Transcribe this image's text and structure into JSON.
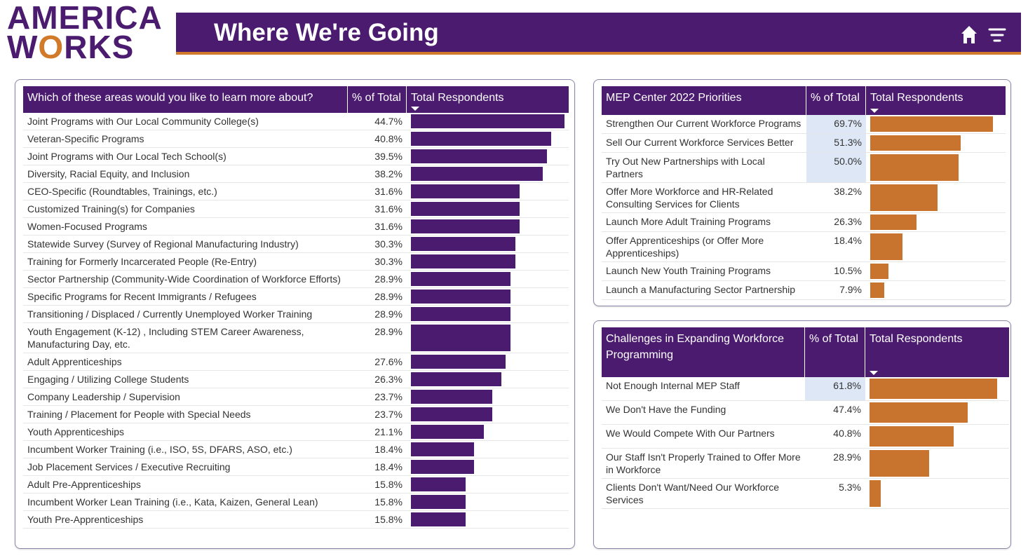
{
  "header": {
    "logo": [
      "AMERICA",
      "WORKS"
    ],
    "title": "Where We're Going"
  },
  "tables": [
    {
      "columns": [
        "Which of these areas would you like to learn more about?",
        "% of Total",
        "Total Respondents"
      ],
      "bar_color": "#4b1b6f",
      "rows": [
        {
          "label": "Joint Programs with Our Local Community College(s)",
          "value": 44.7,
          "value_label": "44.7%"
        },
        {
          "label": "Veteran-Specific Programs",
          "value": 40.8,
          "value_label": "40.8%"
        },
        {
          "label": "Joint Programs with Our Local Tech School(s)",
          "value": 39.5,
          "value_label": "39.5%"
        },
        {
          "label": "Diversity, Racial Equity, and Inclusion",
          "value": 38.2,
          "value_label": "38.2%"
        },
        {
          "label": "CEO-Specific (Roundtables, Trainings, etc.)",
          "value": 31.6,
          "value_label": "31.6%"
        },
        {
          "label": "Customized Training(s) for Companies",
          "value": 31.6,
          "value_label": "31.6%"
        },
        {
          "label": "Women-Focused Programs",
          "value": 31.6,
          "value_label": "31.6%"
        },
        {
          "label": "Statewide Survey (Survey of Regional Manufacturing Industry)",
          "value": 30.3,
          "value_label": "30.3%"
        },
        {
          "label": "Training for Formerly Incarcerated People (Re-Entry)",
          "value": 30.3,
          "value_label": "30.3%"
        },
        {
          "label": "Sector Partnership (Community-Wide Coordination of Workforce Efforts)",
          "value": 28.9,
          "value_label": "28.9%"
        },
        {
          "label": "Specific Programs for Recent Immigrants / Refugees",
          "value": 28.9,
          "value_label": "28.9%"
        },
        {
          "label": "Transitioning / Displaced / Currently Unemployed Worker Training",
          "value": 28.9,
          "value_label": "28.9%"
        },
        {
          "label": "Youth Engagement (K-12) , Including STEM Career Awareness, Manufacturing Day,  etc.",
          "value": 28.9,
          "value_label": "28.9%"
        },
        {
          "label": "Adult Apprenticeships",
          "value": 27.6,
          "value_label": "27.6%"
        },
        {
          "label": "Engaging / Utilizing College Students",
          "value": 26.3,
          "value_label": "26.3%"
        },
        {
          "label": "Company Leadership / Supervision",
          "value": 23.7,
          "value_label": "23.7%"
        },
        {
          "label": "Training / Placement for People with Special Needs",
          "value": 23.7,
          "value_label": "23.7%"
        },
        {
          "label": "Youth Apprenticeships",
          "value": 21.1,
          "value_label": "21.1%"
        },
        {
          "label": "Incumbent Worker Training (i.e., ISO, 5S, DFARS, ASO, etc.)",
          "value": 18.4,
          "value_label": "18.4%"
        },
        {
          "label": "Job Placement Services / Executive Recruiting",
          "value": 18.4,
          "value_label": "18.4%"
        },
        {
          "label": "Adult Pre-Apprenticeships",
          "value": 15.8,
          "value_label": "15.8%"
        },
        {
          "label": "Incumbent Worker Lean Training (i.e., Kata, Kaizen, General Lean)",
          "value": 15.8,
          "value_label": "15.8%"
        },
        {
          "label": "Youth Pre-Apprenticeships",
          "value": 15.8,
          "value_label": "15.8%"
        }
      ]
    },
    {
      "columns": [
        "MEP Center 2022 Priorities",
        "% of Total",
        "Total Respondents"
      ],
      "bar_color": "#c8732e",
      "rows": [
        {
          "label": "Strengthen Our Current Workforce Programs",
          "value": 69.7,
          "value_label": "69.7%",
          "highlight": true
        },
        {
          "label": "Sell Our Current Workforce Services Better",
          "value": 51.3,
          "value_label": "51.3%",
          "highlight": true
        },
        {
          "label": "Try Out New Partnerships with Local Partners",
          "value": 50.0,
          "value_label": "50.0%",
          "highlight": true
        },
        {
          "label": "Offer More Workforce and HR-Related Consulting Services for Clients",
          "value": 38.2,
          "value_label": "38.2%"
        },
        {
          "label": "Launch More Adult Training Programs",
          "value": 26.3,
          "value_label": "26.3%"
        },
        {
          "label": "Offer Apprenticeships (or Offer More Apprenticeships)",
          "value": 18.4,
          "value_label": "18.4%"
        },
        {
          "label": "Launch New Youth Training Programs",
          "value": 10.5,
          "value_label": "10.5%"
        },
        {
          "label": "Launch a Manufacturing Sector Partnership",
          "value": 7.9,
          "value_label": "7.9%"
        }
      ]
    },
    {
      "columns": [
        "Challenges in Expanding Workforce Programming",
        "% of Total",
        "Total Respondents"
      ],
      "bar_color": "#c8732e",
      "rows": [
        {
          "label": "Not Enough Internal MEP Staff",
          "value": 61.8,
          "value_label": "61.8%",
          "highlight": true
        },
        {
          "label": "We Don't Have the Funding",
          "value": 47.4,
          "value_label": "47.4%"
        },
        {
          "label": "We Would Compete With Our Partners",
          "value": 40.8,
          "value_label": "40.8%"
        },
        {
          "label": "Our Staff Isn't Properly Trained to Offer More in Workforce",
          "value": 28.9,
          "value_label": "28.9%"
        },
        {
          "label": "Clients Don't Want/Need Our Workforce Services",
          "value": 5.3,
          "value_label": "5.3%"
        }
      ]
    }
  ]
}
